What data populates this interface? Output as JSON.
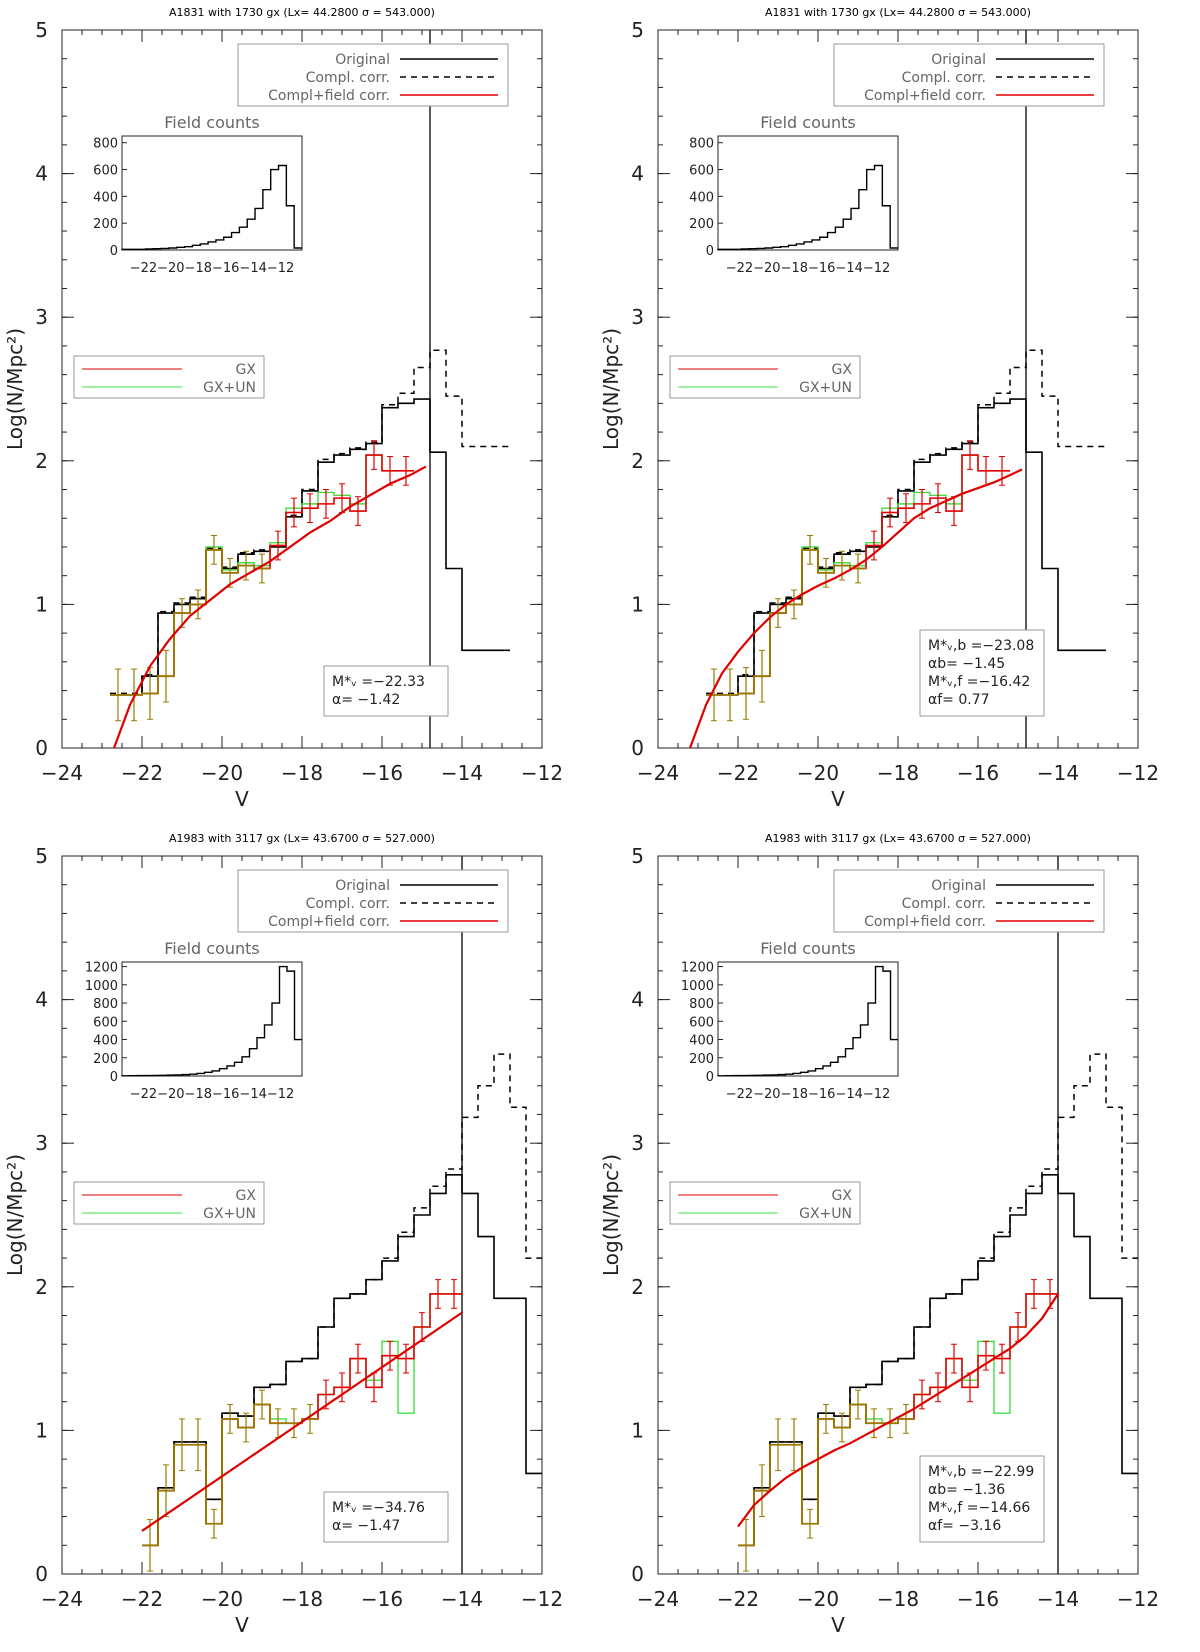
{
  "colors": {
    "black": "#000000",
    "red": "#e00000",
    "green": "#44dd44",
    "olive": "#9a7a00",
    "gray": "#888888"
  },
  "common": {
    "ylabel": "Log(N/Mpc²)",
    "xlabel": "V",
    "legend_top": [
      "Original",
      "Compl. corr.",
      "Compl+field corr."
    ],
    "legend_left": [
      "GX",
      "GX+UN"
    ],
    "inset_title": "Field counts",
    "inset_xticks": "−22−20−18−16−14−12"
  },
  "chart_data": [
    {
      "type": "line",
      "title": "A1831    with   1730 gx (Lx= 44.2800 σ = 543.000)",
      "xlim": [
        -24,
        -12
      ],
      "ylim": [
        0,
        5
      ],
      "xticks": [
        -24,
        -22,
        -20,
        -18,
        -16,
        -14,
        -12
      ],
      "yticks": [
        0,
        1,
        2,
        3,
        4,
        5
      ],
      "vline": -14.8,
      "fit_labels": [
        "M*ᵥ =−22.33",
        "α=  −1.42"
      ],
      "inset": {
        "yticks": [
          0,
          200,
          400,
          600,
          800
        ],
        "ymax": 850
      }
    },
    {
      "type": "line",
      "title": "A1831    with   1730 gx (Lx= 44.2800 σ = 543.000)",
      "xlim": [
        -24,
        -12
      ],
      "ylim": [
        0,
        5
      ],
      "xticks": [
        -24,
        -22,
        -20,
        -18,
        -16,
        -14,
        -12
      ],
      "yticks": [
        0,
        1,
        2,
        3,
        4,
        5
      ],
      "vline": -14.8,
      "fit_labels": [
        "M*ᵥ,b =−23.08",
        "αb=  −1.45",
        "M*ᵥ,f =−16.42",
        "αf=  0.77"
      ],
      "inset": {
        "yticks": [
          0,
          200,
          400,
          600,
          800
        ],
        "ymax": 850
      }
    },
    {
      "type": "line",
      "title": "A1983    with   3117 gx (Lx= 43.6700 σ = 527.000)",
      "xlim": [
        -24,
        -12
      ],
      "ylim": [
        0,
        5
      ],
      "xticks": [
        -24,
        -22,
        -20,
        -18,
        -16,
        -14,
        -12
      ],
      "yticks": [
        0,
        1,
        2,
        3,
        4,
        5
      ],
      "vline": -14.0,
      "fit_labels": [
        "M*ᵥ =−34.76",
        "α=  −1.47"
      ],
      "inset": {
        "yticks": [
          0,
          200,
          400,
          600,
          800,
          1000,
          1200
        ],
        "ymax": 1250
      }
    },
    {
      "type": "line",
      "title": "A1983    with   3117 gx (Lx= 43.6700 σ = 527.000)",
      "xlim": [
        -24,
        -12
      ],
      "ylim": [
        0,
        5
      ],
      "xticks": [
        -24,
        -22,
        -20,
        -18,
        -16,
        -14,
        -12
      ],
      "yticks": [
        0,
        1,
        2,
        3,
        4,
        5
      ],
      "vline": -14.0,
      "fit_labels": [
        "M*ᵥ,b =−22.99",
        "αb=  −1.36",
        "M*ᵥ,f =−14.66",
        "αf=  −3.16"
      ],
      "inset": {
        "yticks": [
          0,
          200,
          400,
          600,
          800,
          1000,
          1200
        ],
        "ymax": 1250
      }
    }
  ],
  "series": {
    "A1831": {
      "original": {
        "edges": [
          -22.8,
          -22.4,
          -22.0,
          -21.6,
          -21.2,
          -20.8,
          -20.4,
          -20.0,
          -19.6,
          -19.2,
          -18.8,
          -18.4,
          -18.0,
          -17.6,
          -17.2,
          -16.8,
          -16.4,
          -16.0,
          -15.6,
          -15.2,
          -14.8,
          -14.4,
          -14.0,
          -13.6,
          -13.2,
          -12.8
        ],
        "values": [
          0.37,
          0.37,
          0.5,
          0.94,
          1.0,
          1.04,
          1.38,
          1.25,
          1.35,
          1.37,
          1.4,
          1.61,
          1.79,
          1.99,
          2.04,
          2.08,
          2.12,
          2.37,
          2.4,
          2.43,
          2.06,
          1.25,
          0.68,
          0.68,
          0.68
        ]
      },
      "compl": {
        "edges": [
          -22.8,
          -22.4,
          -22.0,
          -21.6,
          -21.2,
          -20.8,
          -20.4,
          -20.0,
          -19.6,
          -19.2,
          -18.8,
          -18.4,
          -18.0,
          -17.6,
          -17.2,
          -16.8,
          -16.4,
          -16.0,
          -15.6,
          -15.2,
          -14.8,
          -14.4,
          -14.0,
          -13.6,
          -13.2,
          -12.8
        ],
        "values": [
          0.38,
          0.38,
          0.51,
          0.95,
          1.01,
          1.05,
          1.39,
          1.26,
          1.36,
          1.38,
          1.41,
          1.62,
          1.8,
          2.01,
          2.05,
          2.09,
          2.13,
          2.39,
          2.47,
          2.65,
          2.77,
          2.45,
          2.1,
          2.1,
          2.1
        ]
      },
      "field": {
        "edges": [
          -22.8,
          -22.4,
          -22.0,
          -21.6,
          -21.2,
          -20.8,
          -20.4,
          -20.0,
          -19.6,
          -19.2,
          -18.8,
          -18.4,
          -18.0,
          -17.6,
          -17.2,
          -16.8,
          -16.4,
          -16.0,
          -15.6,
          -15.2
        ],
        "values": [
          0.37,
          0.37,
          0.38,
          0.5,
          0.94,
          1.0,
          1.38,
          1.22,
          1.27,
          1.25,
          1.41,
          1.64,
          1.67,
          1.7,
          1.74,
          1.65,
          2.04,
          1.93,
          1.93
        ],
        "greenValues": [
          0.37,
          0.37,
          0.38,
          0.5,
          0.94,
          1.0,
          1.4,
          1.24,
          1.29,
          1.27,
          1.43,
          1.67,
          1.7,
          1.78,
          1.76,
          1.7,
          2.04,
          1.93,
          1.93
        ]
      },
      "fit_left": {
        "x": [
          -22.7,
          -22.3,
          -21.8,
          -21.3,
          -20.8,
          -20.3,
          -19.8,
          -19.3,
          -18.8,
          -18.3,
          -17.8,
          -17.3,
          -16.8,
          -16.3,
          -15.8,
          -15.3,
          -14.9
        ],
        "y": [
          0.0,
          0.3,
          0.57,
          0.76,
          0.92,
          1.03,
          1.14,
          1.22,
          1.3,
          1.4,
          1.5,
          1.58,
          1.68,
          1.76,
          1.84,
          1.9,
          1.96
        ]
      },
      "fit_right": {
        "x": [
          -23.2,
          -22.8,
          -22.4,
          -22.0,
          -21.6,
          -21.2,
          -20.8,
          -20.4,
          -20.0,
          -19.6,
          -19.2,
          -18.8,
          -18.4,
          -18.0,
          -17.6,
          -17.2,
          -16.8,
          -16.4,
          -16.0,
          -15.6,
          -15.2,
          -14.9
        ],
        "y": [
          0.0,
          0.3,
          0.52,
          0.67,
          0.8,
          0.91,
          1.0,
          1.07,
          1.13,
          1.18,
          1.24,
          1.31,
          1.4,
          1.5,
          1.6,
          1.67,
          1.72,
          1.77,
          1.81,
          1.85,
          1.9,
          1.94
        ]
      },
      "inset_hist": [
        5,
        5,
        5,
        8,
        10,
        12,
        15,
        20,
        25,
        35,
        45,
        60,
        75,
        95,
        130,
        170,
        230,
        310,
        450,
        600,
        630,
        330,
        15
      ],
      "inset_xlim": [
        -23.5,
        -11.5
      ]
    },
    "A1983": {
      "original": {
        "edges": [
          -22.0,
          -21.6,
          -21.2,
          -20.8,
          -20.4,
          -20.0,
          -19.6,
          -19.2,
          -18.8,
          -18.4,
          -18.0,
          -17.6,
          -17.2,
          -16.8,
          -16.4,
          -16.0,
          -15.6,
          -15.2,
          -14.8,
          -14.4,
          -14.0,
          -13.6,
          -13.2,
          -12.8,
          -12.4,
          -12.0
        ],
        "values": [
          0.2,
          0.6,
          0.92,
          0.92,
          0.52,
          1.12,
          1.1,
          1.3,
          1.32,
          1.48,
          1.5,
          1.72,
          1.92,
          1.95,
          2.05,
          2.18,
          2.35,
          2.5,
          2.65,
          2.78,
          2.65,
          2.35,
          1.92,
          1.92,
          0.7
        ]
      },
      "compl": {
        "edges": [
          -22.0,
          -21.6,
          -21.2,
          -20.8,
          -20.4,
          -20.0,
          -19.6,
          -19.2,
          -18.8,
          -18.4,
          -18.0,
          -17.6,
          -17.2,
          -16.8,
          -16.4,
          -16.0,
          -15.6,
          -15.2,
          -14.8,
          -14.4,
          -14.0,
          -13.6,
          -13.2,
          -12.8,
          -12.4,
          -12.0
        ],
        "values": [
          0.2,
          0.6,
          0.92,
          0.92,
          0.52,
          1.12,
          1.1,
          1.3,
          1.32,
          1.48,
          1.5,
          1.72,
          1.92,
          1.95,
          2.05,
          2.2,
          2.38,
          2.55,
          2.7,
          2.82,
          3.18,
          3.4,
          3.62,
          3.25,
          2.2
        ]
      },
      "field": {
        "edges": [
          -22.0,
          -21.6,
          -21.2,
          -20.8,
          -20.4,
          -20.0,
          -19.6,
          -19.2,
          -18.8,
          -18.4,
          -18.0,
          -17.6,
          -17.2,
          -16.8,
          -16.4,
          -16.0,
          -15.6,
          -15.2,
          -14.8,
          -14.4,
          -14.0
        ],
        "values": [
          0.2,
          0.58,
          0.9,
          0.9,
          0.35,
          1.08,
          1.02,
          1.18,
          1.05,
          1.05,
          1.08,
          1.25,
          1.3,
          1.5,
          1.3,
          1.52,
          1.5,
          1.72,
          1.95,
          1.95
        ],
        "greenValues": [
          0.2,
          0.58,
          0.9,
          0.9,
          0.35,
          1.08,
          1.02,
          1.18,
          1.08,
          1.05,
          1.08,
          1.25,
          1.3,
          1.5,
          1.35,
          1.62,
          1.12,
          1.72,
          1.95,
          1.95
        ]
      },
      "fit_left": {
        "x": [
          -22.0,
          -14.0
        ],
        "y": [
          0.3,
          1.82
        ]
      },
      "fit_right": {
        "x": [
          -22.0,
          -21.6,
          -21.2,
          -20.8,
          -20.4,
          -20.0,
          -19.6,
          -19.2,
          -18.8,
          -18.4,
          -18.0,
          -17.6,
          -17.2,
          -16.8,
          -16.4,
          -16.0,
          -15.6,
          -15.2,
          -14.8,
          -14.4,
          -14.0
        ],
        "y": [
          0.33,
          0.48,
          0.58,
          0.67,
          0.74,
          0.8,
          0.86,
          0.91,
          0.97,
          1.03,
          1.09,
          1.15,
          1.22,
          1.29,
          1.36,
          1.43,
          1.5,
          1.57,
          1.66,
          1.78,
          1.95
        ]
      },
      "inset_hist": [
        2,
        3,
        4,
        5,
        6,
        8,
        10,
        12,
        15,
        20,
        28,
        40,
        55,
        80,
        110,
        150,
        210,
        300,
        420,
        560,
        800,
        1200,
        1150,
        400
      ],
      "inset_xlim": [
        -23.5,
        -11.5
      ]
    }
  }
}
